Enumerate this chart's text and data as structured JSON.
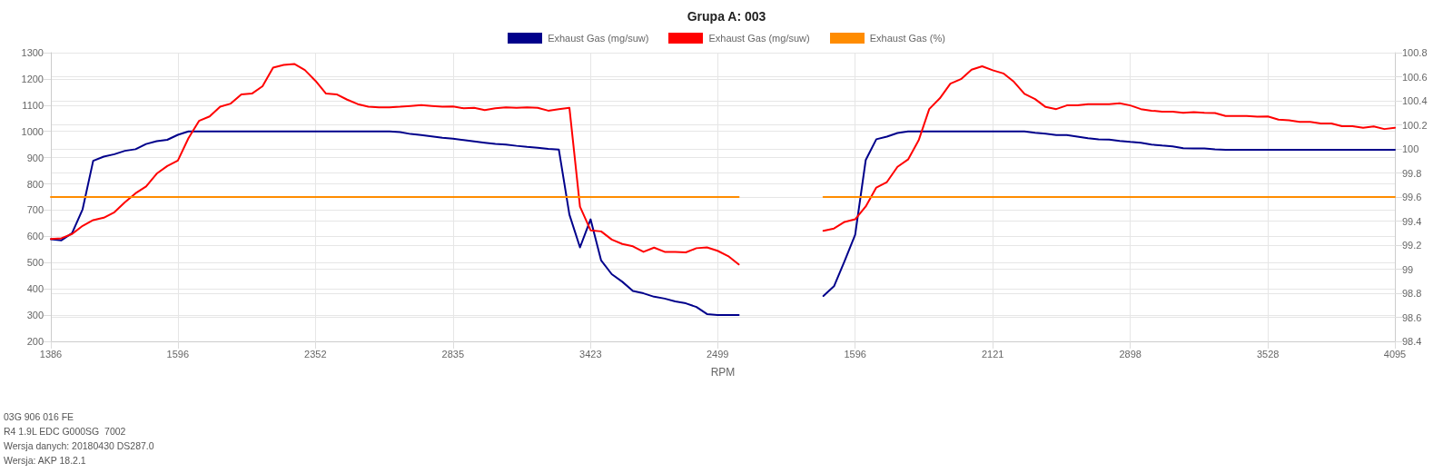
{
  "chart_data": {
    "type": "line",
    "title": "Grupa A: 003",
    "xlabel": "RPM",
    "categories": [
      "1386",
      null,
      null,
      null,
      null,
      null,
      null,
      null,
      null,
      null,
      null,
      null,
      "1596",
      null,
      null,
      null,
      null,
      null,
      null,
      null,
      null,
      null,
      null,
      null,
      null,
      "2352",
      null,
      null,
      null,
      null,
      null,
      null,
      null,
      null,
      null,
      null,
      null,
      null,
      "2835",
      null,
      null,
      null,
      null,
      null,
      null,
      null,
      null,
      null,
      null,
      null,
      null,
      "3423",
      null,
      null,
      null,
      null,
      null,
      null,
      null,
      null,
      null,
      null,
      null,
      "2499",
      null,
      null,
      null,
      null,
      null,
      null,
      null,
      null,
      null,
      null,
      null,
      null,
      "1596",
      null,
      null,
      null,
      null,
      null,
      null,
      null,
      null,
      null,
      null,
      null,
      null,
      "2121",
      null,
      null,
      null,
      null,
      null,
      null,
      null,
      null,
      null,
      null,
      null,
      null,
      "2898",
      null,
      null,
      null,
      null,
      null,
      null,
      null,
      null,
      null,
      null,
      null,
      null,
      "3528",
      null,
      null,
      null,
      null,
      null,
      null,
      null,
      null,
      null,
      null,
      null,
      "4095"
    ],
    "series": [
      {
        "name": "Exhaust Gas (mg/suw)",
        "color": "#00008b",
        "values": [
          589,
          585,
          612,
          703,
          888,
          904,
          913,
          926,
          932,
          952,
          963,
          968,
          987,
          1000,
          1000,
          1000,
          1000,
          1000,
          1000,
          1000,
          1000,
          1000,
          1000,
          1000,
          1000,
          1000,
          1000,
          1000,
          1000,
          1000,
          1000,
          1000,
          1000,
          997,
          990,
          986,
          981,
          976,
          972,
          967,
          962,
          957,
          952,
          950,
          945,
          941,
          938,
          933,
          931,
          683,
          558,
          665,
          508,
          456,
          427,
          392,
          383,
          370,
          363,
          352,
          345,
          331,
          304,
          300,
          300,
          300,
          null,
          null,
          null,
          null,
          null,
          null,
          null,
          373,
          410,
          506,
          606,
          891,
          970,
          980,
          994,
          1000,
          1000,
          1000,
          1000,
          1000,
          1000,
          1000,
          1000,
          1000,
          1000,
          1000,
          1000,
          995,
          991,
          986,
          986,
          980,
          974,
          970,
          969,
          964,
          960,
          957,
          950,
          946,
          943,
          936,
          935,
          935,
          932,
          930,
          930,
          930,
          930,
          930,
          930,
          930,
          930,
          930,
          930,
          930,
          930,
          930,
          930,
          930,
          930,
          930
        ]
      },
      {
        "name": "Exhaust Gas (mg/suw)",
        "color": "#ff0000",
        "values": [
          590,
          593,
          609,
          640,
          662,
          671,
          692,
          730,
          764,
          790,
          839,
          868,
          889,
          974,
          1040,
          1057,
          1094,
          1106,
          1141,
          1144,
          1172,
          1243,
          1253,
          1257,
          1234,
          1193,
          1144,
          1141,
          1121,
          1104,
          1094,
          1092,
          1092,
          1094,
          1097,
          1100,
          1097,
          1094,
          1095,
          1088,
          1090,
          1081,
          1088,
          1092,
          1090,
          1092,
          1090,
          1079,
          1085,
          1090,
          713,
          623,
          619,
          588,
          571,
          562,
          541,
          557,
          541,
          541,
          539,
          555,
          558,
          545,
          525,
          493,
          null,
          null,
          null,
          null,
          null,
          null,
          null,
          621,
          630,
          655,
          665,
          714,
          786,
          807,
          865,
          893,
          966,
          1085,
          1126,
          1182,
          1199,
          1235,
          1248,
          1233,
          1221,
          1189,
          1143,
          1123,
          1093,
          1085,
          1099,
          1099,
          1104,
          1104,
          1104,
          1107,
          1099,
          1085,
          1079,
          1075,
          1075,
          1071,
          1073,
          1071,
          1070,
          1059,
          1059,
          1059,
          1056,
          1057,
          1045,
          1042,
          1036,
          1036,
          1030,
          1030,
          1020,
          1020,
          1014,
          1019,
          1009,
          1014
        ]
      },
      {
        "name": "Exhaust Gas (%)",
        "color": "#ff8c00",
        "axis": "y2",
        "values": [
          99.6,
          99.6,
          99.6,
          99.6,
          99.6,
          99.6,
          99.6,
          99.6,
          99.6,
          99.6,
          99.6,
          99.6,
          99.6,
          99.6,
          99.6,
          99.6,
          99.6,
          99.6,
          99.6,
          99.6,
          99.6,
          99.6,
          99.6,
          99.6,
          99.6,
          99.6,
          99.6,
          99.6,
          99.6,
          99.6,
          99.6,
          99.6,
          99.6,
          99.6,
          99.6,
          99.6,
          99.6,
          99.6,
          99.6,
          99.6,
          99.6,
          99.6,
          99.6,
          99.6,
          99.6,
          99.6,
          99.6,
          99.6,
          99.6,
          99.6,
          99.6,
          99.6,
          99.6,
          99.6,
          99.6,
          99.6,
          99.6,
          99.6,
          99.6,
          99.6,
          99.6,
          99.6,
          99.6,
          99.6,
          99.6,
          99.6,
          null,
          null,
          null,
          null,
          null,
          null,
          null,
          99.6,
          99.6,
          99.6,
          99.6,
          99.6,
          99.6,
          99.6,
          99.6,
          99.6,
          99.6,
          99.6,
          99.6,
          99.6,
          99.6,
          99.6,
          99.6,
          99.6,
          99.6,
          99.6,
          99.6,
          99.6,
          99.6,
          99.6,
          99.6,
          99.6,
          99.6,
          99.6,
          99.6,
          99.6,
          99.6,
          99.6,
          99.6,
          99.6,
          99.6,
          99.6,
          99.6,
          99.6,
          99.6,
          99.6,
          99.6,
          99.6,
          99.6,
          99.6,
          99.6,
          99.6,
          99.6,
          99.6,
          99.6,
          99.6,
          99.6,
          99.6,
          99.6,
          99.6,
          99.6,
          99.6
        ]
      }
    ],
    "ylim": [
      200,
      1300
    ],
    "yticks": [
      200,
      300,
      400,
      500,
      600,
      700,
      800,
      900,
      1000,
      1100,
      1200,
      1300
    ],
    "y2lim": [
      98.4,
      100.8
    ],
    "y2ticks": [
      98.4,
      98.6,
      98.8,
      99,
      99.2,
      99.4,
      99.6,
      99.8,
      100,
      100.2,
      100.4,
      100.6,
      100.8
    ],
    "grid": true,
    "legend": "top",
    "marker": "none",
    "line_style": "solid",
    "annotations": [
      "03G 906 016 FE",
      "R4 1.9L EDC G000SG  7002",
      "Wersja danych: 20180430 DS287.0",
      "Wersja: AKP 18.2.1"
    ]
  }
}
